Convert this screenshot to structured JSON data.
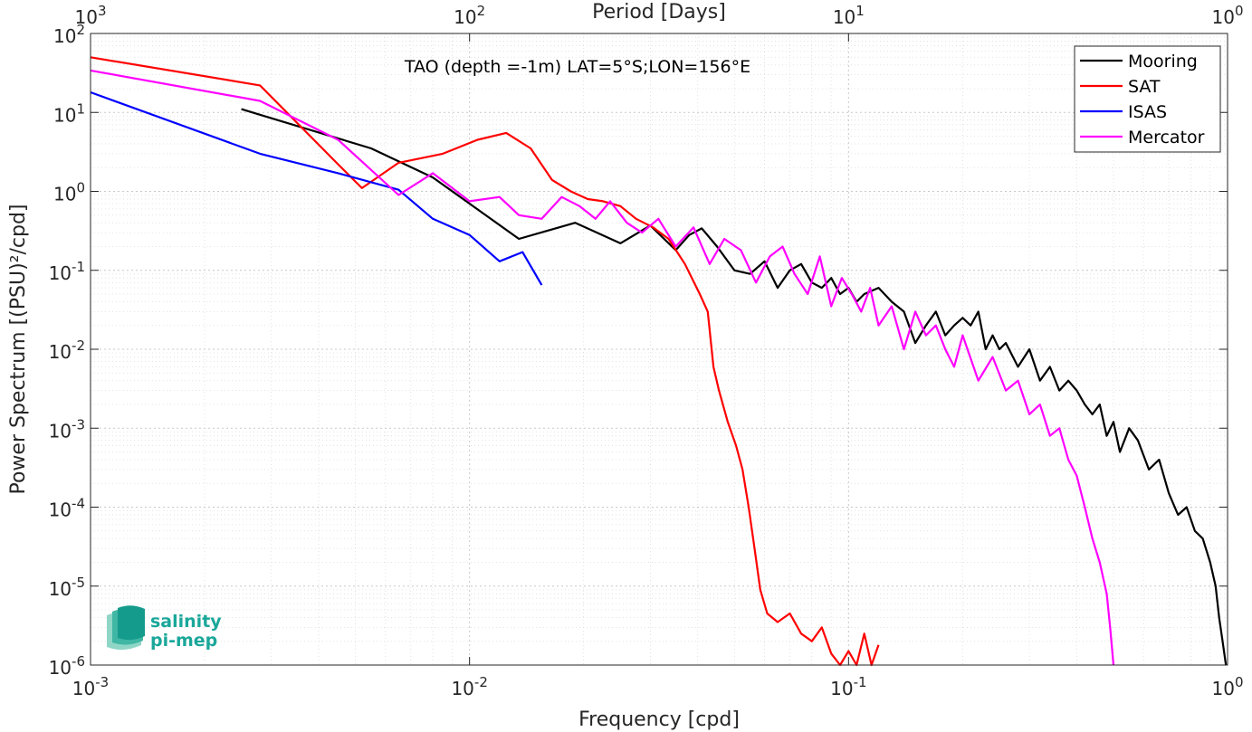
{
  "chart_data": {
    "type": "line",
    "title": "TAO (depth =-1m) LAT=5°S;LON=156°E",
    "xlabel": "Frequency [cpd]",
    "ylabel": "Power Spectrum [(PSU)²/cpd]",
    "top_xlabel": "Period [Days]",
    "xscale": "log",
    "yscale": "log",
    "xlim": [
      0.001,
      1
    ],
    "ylim": [
      1e-06,
      100
    ],
    "grid": true,
    "legend_position": "top-right",
    "x_ticks": [
      {
        "value": 0.001,
        "base": "10",
        "exp": "-3"
      },
      {
        "value": 0.01,
        "base": "10",
        "exp": "-2"
      },
      {
        "value": 0.1,
        "base": "10",
        "exp": "-1"
      },
      {
        "value": 1,
        "base": "10",
        "exp": "0"
      }
    ],
    "y_ticks": [
      {
        "value": 1e-06,
        "base": "10",
        "exp": "-6"
      },
      {
        "value": 1e-05,
        "base": "10",
        "exp": "-5"
      },
      {
        "value": 0.0001,
        "base": "10",
        "exp": "-4"
      },
      {
        "value": 0.001,
        "base": "10",
        "exp": "-3"
      },
      {
        "value": 0.01,
        "base": "10",
        "exp": "-2"
      },
      {
        "value": 0.1,
        "base": "10",
        "exp": "-1"
      },
      {
        "value": 1,
        "base": "10",
        "exp": "0"
      },
      {
        "value": 10,
        "base": "10",
        "exp": "1"
      },
      {
        "value": 100,
        "base": "10",
        "exp": "2"
      }
    ],
    "top_x_ticks": [
      {
        "frequency": 0.001,
        "label": "10",
        "exp": "3"
      },
      {
        "frequency": 0.01,
        "label": "10",
        "exp": "2"
      },
      {
        "frequency": 0.1,
        "label": "10",
        "exp": "1"
      },
      {
        "frequency": 1,
        "label": "10",
        "exp": "0"
      }
    ],
    "series": [
      {
        "name": "Mooring",
        "color": "#000000",
        "x": [
          0.0025,
          0.0055,
          0.008,
          0.0135,
          0.019,
          0.025,
          0.03,
          0.035,
          0.038,
          0.041,
          0.045,
          0.05,
          0.055,
          0.06,
          0.065,
          0.07,
          0.075,
          0.08,
          0.085,
          0.09,
          0.095,
          0.1,
          0.105,
          0.11,
          0.12,
          0.13,
          0.14,
          0.15,
          0.16,
          0.17,
          0.18,
          0.19,
          0.2,
          0.21,
          0.22,
          0.23,
          0.24,
          0.25,
          0.26,
          0.28,
          0.3,
          0.32,
          0.34,
          0.36,
          0.38,
          0.4,
          0.42,
          0.44,
          0.46,
          0.48,
          0.5,
          0.52,
          0.55,
          0.58,
          0.62,
          0.66,
          0.7,
          0.74,
          0.78,
          0.82,
          0.86,
          0.9,
          0.93,
          0.95,
          0.97,
          0.99
        ],
        "y": [
          11,
          3.5,
          1.5,
          0.25,
          0.4,
          0.22,
          0.37,
          0.18,
          0.28,
          0.34,
          0.2,
          0.1,
          0.09,
          0.13,
          0.06,
          0.1,
          0.12,
          0.07,
          0.06,
          0.08,
          0.05,
          0.06,
          0.04,
          0.05,
          0.06,
          0.04,
          0.03,
          0.012,
          0.02,
          0.03,
          0.015,
          0.02,
          0.025,
          0.02,
          0.03,
          0.01,
          0.015,
          0.01,
          0.012,
          0.006,
          0.01,
          0.004,
          0.006,
          0.003,
          0.004,
          0.003,
          0.002,
          0.0015,
          0.002,
          0.0008,
          0.0012,
          0.0005,
          0.001,
          0.0007,
          0.0003,
          0.0004,
          0.00015,
          8e-05,
          0.0001,
          5e-05,
          4e-05,
          2e-05,
          1e-05,
          4e-06,
          2e-06,
          1e-06
        ]
      },
      {
        "name": "SAT",
        "color": "#ff0000",
        "x": [
          0.001,
          0.0028,
          0.0045,
          0.0052,
          0.0065,
          0.0085,
          0.0105,
          0.0125,
          0.0145,
          0.0165,
          0.0185,
          0.0205,
          0.0225,
          0.025,
          0.0275,
          0.0305,
          0.0335,
          0.037,
          0.0405,
          0.0425,
          0.044,
          0.0455,
          0.048,
          0.0505,
          0.0525,
          0.0545,
          0.0565,
          0.0585,
          0.061,
          0.065,
          0.07,
          0.075,
          0.08,
          0.085,
          0.09,
          0.095,
          0.1,
          0.105,
          0.11,
          0.115,
          0.12
        ],
        "y": [
          50,
          22,
          2.2,
          1.1,
          2.3,
          3,
          4.5,
          5.5,
          3.5,
          1.4,
          1,
          0.8,
          0.75,
          0.65,
          0.45,
          0.35,
          0.25,
          0.12,
          0.05,
          0.03,
          0.006,
          0.003,
          0.0012,
          0.0006,
          0.0003,
          0.0001,
          3e-05,
          9e-06,
          4.5e-06,
          3.5e-06,
          4.5e-06,
          2.5e-06,
          2e-06,
          3e-06,
          1.4e-06,
          1e-06,
          1.5e-06,
          1e-06,
          2.5e-06,
          1e-06,
          1.8e-06
        ]
      },
      {
        "name": "ISAS",
        "color": "#0000ff",
        "x": [
          0.001,
          0.0028,
          0.0045,
          0.0065,
          0.008,
          0.01,
          0.012,
          0.0138,
          0.0155
        ],
        "y": [
          18,
          3,
          1.7,
          1.05,
          0.45,
          0.28,
          0.13,
          0.17,
          0.065
        ]
      },
      {
        "name": "Mercator",
        "color": "#ff00ff",
        "x": [
          0.001,
          0.0028,
          0.0045,
          0.0065,
          0.008,
          0.01,
          0.012,
          0.0135,
          0.0155,
          0.0175,
          0.0195,
          0.0215,
          0.0235,
          0.026,
          0.0285,
          0.0315,
          0.035,
          0.039,
          0.043,
          0.047,
          0.052,
          0.057,
          0.062,
          0.067,
          0.072,
          0.078,
          0.084,
          0.09,
          0.096,
          0.102,
          0.108,
          0.114,
          0.12,
          0.13,
          0.14,
          0.15,
          0.16,
          0.17,
          0.18,
          0.19,
          0.2,
          0.22,
          0.24,
          0.26,
          0.28,
          0.3,
          0.32,
          0.34,
          0.36,
          0.38,
          0.4,
          0.42,
          0.44,
          0.46,
          0.48,
          0.49,
          0.5
        ],
        "y": [
          34,
          14,
          4.5,
          0.9,
          1.7,
          0.75,
          0.85,
          0.5,
          0.45,
          0.85,
          0.65,
          0.45,
          0.75,
          0.4,
          0.3,
          0.45,
          0.2,
          0.35,
          0.12,
          0.25,
          0.18,
          0.07,
          0.15,
          0.2,
          0.09,
          0.05,
          0.15,
          0.035,
          0.08,
          0.05,
          0.03,
          0.06,
          0.02,
          0.035,
          0.01,
          0.03,
          0.015,
          0.02,
          0.01,
          0.006,
          0.015,
          0.004,
          0.008,
          0.003,
          0.004,
          0.0015,
          0.002,
          0.0008,
          0.001,
          0.0004,
          0.00025,
          0.0001,
          4e-05,
          2e-05,
          8e-06,
          3e-06,
          1e-06
        ]
      }
    ]
  },
  "logo": {
    "line1": "salinity",
    "line2": "pi-mep"
  }
}
